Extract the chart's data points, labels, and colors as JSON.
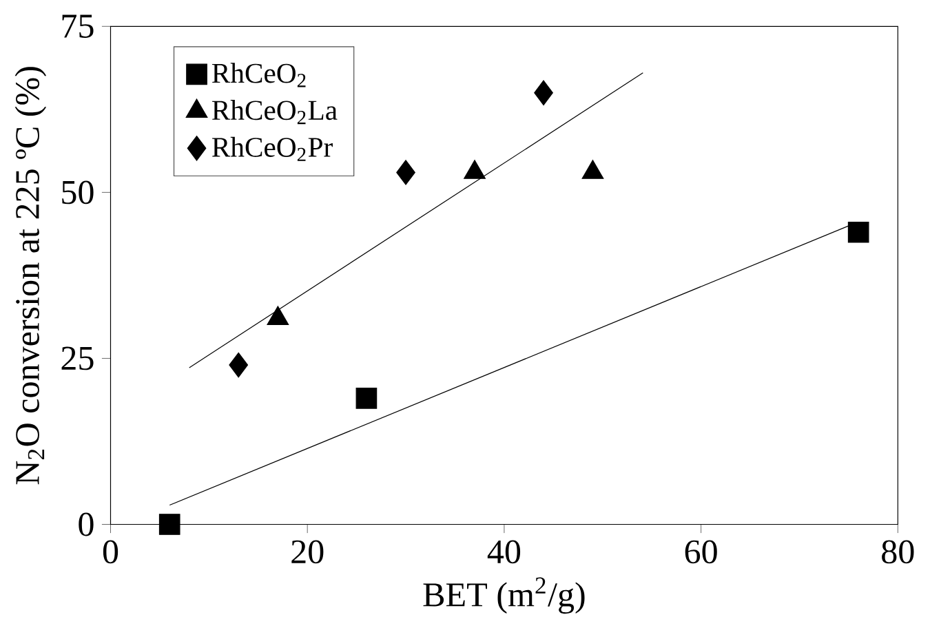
{
  "chart_data": {
    "type": "scatter",
    "xlabel": "BET (m$^{2}$/g)",
    "ylabel": "N$_{2}$O conversion at 225 ºC (%)",
    "xlim": [
      0,
      80
    ],
    "ylim": [
      0,
      75
    ],
    "xticks": [
      0,
      20,
      40,
      60,
      80
    ],
    "yticks": [
      0,
      25,
      50,
      75
    ],
    "grid": false,
    "legend": "top left",
    "series": [
      {
        "name": "RhCeO$_{2}$",
        "color": "#000000",
        "marker": "square",
        "x": [
          6,
          26,
          76
        ],
        "values": [
          0,
          19,
          44
        ]
      },
      {
        "name": "RhCeO$_{2}$La",
        "color": "#000000",
        "marker": "triangle",
        "x": [
          17,
          37,
          49
        ],
        "values": [
          31,
          53,
          53
        ]
      },
      {
        "name": "RhCeO$_{2}$Pr",
        "color": "#000000",
        "marker": "diamond",
        "x": [
          13,
          30,
          44
        ],
        "values": [
          24,
          53,
          65
        ]
      },
      {
        "type": "line",
        "color": "#000000",
        "marker": "none",
        "x": [
          6,
          75.4
        ],
        "values": [
          2.9,
          45.2
        ]
      },
      {
        "type": "line",
        "color": "#000000",
        "marker": "none",
        "x": [
          8,
          54.1
        ],
        "values": [
          23.6,
          68
        ]
      }
    ]
  }
}
